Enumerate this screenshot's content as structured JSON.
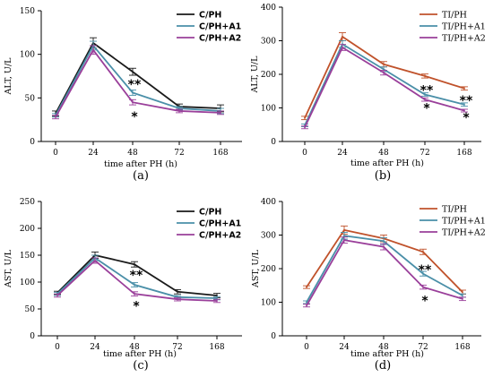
{
  "chart_data": [
    {
      "type": "line",
      "panel_label": "(a)",
      "ylabel": "ALT, U/L",
      "xlabel": "time after PH (h)",
      "categories": [
        "0",
        "24",
        "48",
        "72",
        "168"
      ],
      "yticks": [
        0,
        50,
        100,
        150
      ],
      "ylim": [
        0,
        150
      ],
      "legend_style": "sans",
      "legend_position": "top-right",
      "series": [
        {
          "name": "C/PH",
          "color": "#1a1a1a",
          "values": [
            32,
            113,
            80,
            40,
            38
          ],
          "errors": [
            3,
            6,
            4,
            3,
            4
          ]
        },
        {
          "name": "C/PH+A1",
          "color": "#4a8fa8",
          "values": [
            30,
            110,
            56,
            38,
            35
          ],
          "errors": [
            2,
            5,
            3,
            2,
            3
          ]
        },
        {
          "name": "C/PH+A2",
          "color": "#9a3f9a",
          "values": [
            28,
            105,
            45,
            35,
            33
          ],
          "errors": [
            2,
            5,
            3,
            2,
            2
          ]
        }
      ],
      "annotations": [
        {
          "text": "**",
          "category": "48",
          "y": 66
        },
        {
          "text": "*",
          "category": "48",
          "y": 29
        }
      ]
    },
    {
      "type": "line",
      "panel_label": "(b)",
      "ylabel": "ALT, U/L",
      "xlabel": "time after PH (h)",
      "categories": [
        "0",
        "24",
        "48",
        "72",
        "168"
      ],
      "yticks": [
        0,
        100,
        200,
        300,
        400
      ],
      "ylim": [
        0,
        400
      ],
      "legend_style": "serif",
      "legend_position": "top-right",
      "series": [
        {
          "name": "TI/PH",
          "color": "#c0522b",
          "values": [
            70,
            312,
            230,
            195,
            158
          ],
          "errors": [
            5,
            12,
            8,
            6,
            5
          ]
        },
        {
          "name": "TI/PH+A1",
          "color": "#4a8fa8",
          "values": [
            48,
            290,
            215,
            140,
            110
          ],
          "errors": [
            4,
            10,
            7,
            5,
            5
          ]
        },
        {
          "name": "TI/PH+A2",
          "color": "#9a3f9a",
          "values": [
            42,
            280,
            205,
            125,
            92
          ],
          "errors": [
            4,
            9,
            7,
            5,
            4
          ]
        }
      ],
      "annotations": [
        {
          "text": "**",
          "category": "72",
          "y": 153
        },
        {
          "text": "*",
          "category": "72",
          "y": 100
        },
        {
          "text": "**",
          "category": "168",
          "y": 123
        },
        {
          "text": "*",
          "category": "168",
          "y": 72
        }
      ]
    },
    {
      "type": "line",
      "panel_label": "(c)",
      "ylabel": "AST, U/L",
      "xlabel": "time after PH (h)",
      "categories": [
        "0",
        "24",
        "48",
        "72",
        "168"
      ],
      "yticks": [
        0,
        50,
        100,
        150,
        200,
        250
      ],
      "ylim": [
        0,
        250
      ],
      "legend_style": "sans",
      "legend_position": "top-right",
      "series": [
        {
          "name": "C/PH",
          "color": "#1a1a1a",
          "values": [
            80,
            150,
            133,
            82,
            75
          ],
          "errors": [
            3,
            6,
            5,
            4,
            4
          ]
        },
        {
          "name": "C/PH+A1",
          "color": "#4a8fa8",
          "values": [
            78,
            145,
            95,
            72,
            70
          ],
          "errors": [
            3,
            5,
            4,
            3,
            3
          ]
        },
        {
          "name": "C/PH+A2",
          "color": "#9a3f9a",
          "values": [
            75,
            140,
            78,
            68,
            65
          ],
          "errors": [
            3,
            5,
            4,
            3,
            3
          ]
        }
      ],
      "annotations": [
        {
          "text": "**",
          "category": "48",
          "y": 113
        },
        {
          "text": "*",
          "category": "48",
          "y": 56
        }
      ]
    },
    {
      "type": "line",
      "panel_label": "(d)",
      "ylabel": "AST, U/L",
      "xlabel": "time after PH (h)",
      "categories": [
        "0",
        "24",
        "48",
        "72",
        "168"
      ],
      "yticks": [
        0,
        100,
        200,
        300,
        400
      ],
      "ylim": [
        0,
        400
      ],
      "legend_style": "serif",
      "legend_position": "top-right",
      "series": [
        {
          "name": "TI/PH",
          "color": "#c0522b",
          "values": [
            145,
            315,
            290,
            250,
            130
          ],
          "errors": [
            4,
            12,
            10,
            8,
            6
          ]
        },
        {
          "name": "TI/PH+A1",
          "color": "#4a8fa8",
          "values": [
            100,
            298,
            282,
            185,
            120
          ],
          "errors": [
            4,
            10,
            10,
            7,
            5
          ]
        },
        {
          "name": "TI/PH+A2",
          "color": "#9a3f9a",
          "values": [
            90,
            285,
            265,
            145,
            110
          ],
          "errors": [
            4,
            9,
            9,
            6,
            5
          ]
        }
      ],
      "annotations": [
        {
          "text": "**",
          "category": "72",
          "y": 198
        },
        {
          "text": "*",
          "category": "72",
          "y": 106
        }
      ]
    }
  ]
}
